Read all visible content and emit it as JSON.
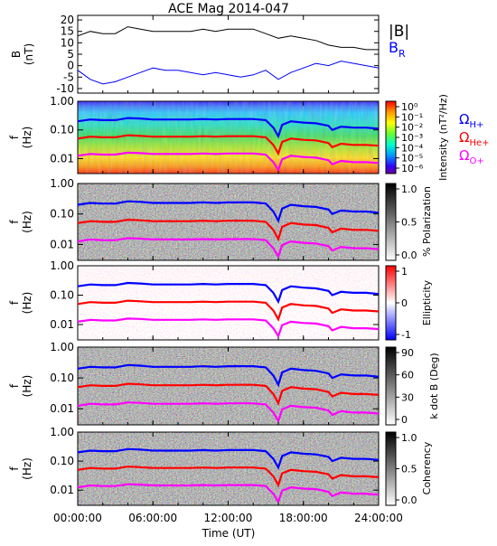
{
  "title": "ACE Mag 2014-047",
  "xlabel": "Time (UT)",
  "x_ticks": [
    "00:00:00",
    "06:00:00",
    "12:00:00",
    "18:00:00",
    "24:00:00"
  ],
  "x_range_hours": [
    0,
    24
  ],
  "colors": {
    "b_total": "#000000",
    "b_r": "#0000ff",
    "omega_h": "#0000ff",
    "omega_he": "#ff0000",
    "omega_o": "#ff00ff"
  },
  "freq_ticks": [
    "1.00",
    "0.10",
    "0.01"
  ],
  "freq_range_hz": [
    0.003,
    1.0
  ],
  "chart_data": [
    {
      "type": "line",
      "panel": "magnetic-field",
      "ylabel": "B (nT)",
      "ylim": [
        -12,
        22
      ],
      "y_ticks": [
        "20",
        "15",
        "10",
        "5",
        "0",
        "-5",
        "-10"
      ],
      "legend": [
        "|B|",
        "B_R"
      ],
      "x_hours": [
        0,
        1,
        2,
        3,
        4,
        5,
        6,
        7,
        8,
        9,
        10,
        11,
        12,
        13,
        14,
        15,
        16,
        17,
        18,
        19,
        20,
        21,
        22,
        23,
        24
      ],
      "series": [
        {
          "name": "|B|",
          "values": [
            13,
            15,
            14,
            14,
            17,
            16,
            15,
            15,
            15,
            15,
            16,
            15,
            16,
            16,
            16,
            14,
            12,
            13,
            12,
            11,
            9,
            8,
            8,
            7,
            7
          ]
        },
        {
          "name": "B_R",
          "values": [
            -2,
            -6,
            -8,
            -7,
            -5,
            -3,
            -1,
            -2,
            -2,
            -3,
            -4,
            -3,
            -4,
            -5,
            -4,
            -2,
            -6,
            -3,
            -1,
            1,
            0,
            2,
            1,
            0,
            -1
          ]
        }
      ]
    },
    {
      "type": "heatmap",
      "panel": "intensity",
      "ylabel": "f (Hz)",
      "colorbar_label": "Intensity (nT²/Hz)",
      "colorbar_ticks": [
        "10⁰",
        "10⁻¹",
        "10⁻²",
        "10⁻³",
        "10⁻⁴",
        "10⁻⁵",
        "10⁻⁶"
      ],
      "legend": [
        "Ω_H+",
        "Ω_He+",
        "Ω_O+"
      ]
    },
    {
      "type": "heatmap",
      "panel": "polarization",
      "ylabel": "f (Hz)",
      "colorbar_label": "% Polarization",
      "colorbar_ticks": [
        "1.0",
        "0.5",
        "0.0"
      ]
    },
    {
      "type": "heatmap",
      "panel": "ellipticity",
      "ylabel": "f (Hz)",
      "colorbar_label": "Ellipticity",
      "colorbar_ticks": [
        "1",
        "0",
        "-1"
      ]
    },
    {
      "type": "heatmap",
      "panel": "k-dot-b",
      "ylabel": "f (Hz)",
      "colorbar_label": "k dot B (Deg)",
      "colorbar_ticks": [
        "90",
        "60",
        "30",
        "0"
      ]
    },
    {
      "type": "heatmap",
      "panel": "coherency",
      "ylabel": "f (Hz)",
      "colorbar_label": "Coherency",
      "colorbar_ticks": [
        "1.0",
        "0.5",
        "0.0"
      ]
    }
  ],
  "gyrofrequency_hz": {
    "x_hours": [
      0,
      1,
      2,
      3,
      4,
      5,
      6,
      7,
      8,
      9,
      10,
      11,
      12,
      13,
      14,
      15,
      15.6,
      16,
      16.3,
      17,
      18,
      19,
      20,
      20.3,
      21,
      22,
      23,
      24
    ],
    "omega_h": [
      0.2,
      0.23,
      0.22,
      0.22,
      0.26,
      0.25,
      0.23,
      0.23,
      0.23,
      0.23,
      0.24,
      0.23,
      0.24,
      0.24,
      0.24,
      0.22,
      0.12,
      0.06,
      0.15,
      0.2,
      0.18,
      0.17,
      0.14,
      0.1,
      0.13,
      0.12,
      0.12,
      0.11
    ],
    "omega_he": [
      0.05,
      0.058,
      0.055,
      0.055,
      0.065,
      0.062,
      0.058,
      0.058,
      0.058,
      0.058,
      0.06,
      0.058,
      0.06,
      0.06,
      0.06,
      0.055,
      0.03,
      0.015,
      0.038,
      0.05,
      0.045,
      0.043,
      0.035,
      0.025,
      0.033,
      0.03,
      0.03,
      0.028
    ],
    "omega_o": [
      0.0125,
      0.0145,
      0.0138,
      0.0138,
      0.016,
      0.0155,
      0.0145,
      0.0145,
      0.0145,
      0.0145,
      0.015,
      0.0145,
      0.015,
      0.015,
      0.015,
      0.0138,
      0.0075,
      0.004,
      0.0095,
      0.0125,
      0.0113,
      0.0108,
      0.0088,
      0.0063,
      0.0083,
      0.0075,
      0.0075,
      0.007
    ]
  }
}
